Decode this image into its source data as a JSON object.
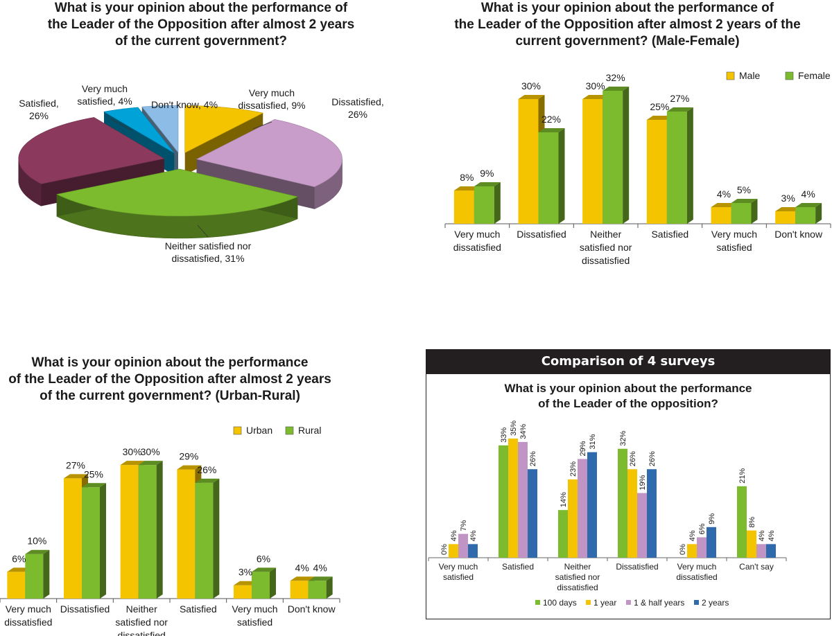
{
  "colors": {
    "male": "#f5c400",
    "female": "#7cbb2e",
    "s100": "#7cbb2e",
    "s1y": "#f5c400",
    "s15y": "#c094c4",
    "s2y": "#2f6aad",
    "pie_vmd": "#f5c400",
    "pie_dis": "#c99dc9",
    "pie_nei": "#7cbb2e",
    "pie_sat": "#8b3a5e",
    "pie_vms": "#00a2d8",
    "pie_dk": "#8dbde6"
  },
  "panels": {
    "pie": {
      "title": "What is your opinion about the performance of\nthe Leader of the Opposition after almost 2 years\nof the current government?"
    },
    "gender": {
      "title": "What is your opinion about the performance of\nthe Leader of the Opposition after almost 2 years of the\ncurrent government? (Male-Female)"
    },
    "area": {
      "title": "What is your opinion about the performance\nof the Leader of the Opposition after almost 2 years\nof the current government? (Urban-Rural)"
    },
    "surveys": {
      "header": "Comparison of 4 surveys",
      "title": "What is your opinion about the performance\nof the Leader of the opposition?"
    }
  },
  "chart_data": [
    {
      "type": "pie",
      "title": "What is your opinion about the performance of the Leader of the Opposition after almost 2 years of the current government?",
      "slices": [
        {
          "label": "Very much dissatisfied, 9%",
          "value": 9,
          "color": "#f5c400"
        },
        {
          "label": "Dissatisfied, 26%",
          "value": 26,
          "color": "#c99dc9"
        },
        {
          "label": "Neither satisfied nor dissatisfied, 31%",
          "value": 31,
          "color": "#7cbb2e"
        },
        {
          "label": "Satisfied, 26%",
          "value": 26,
          "color": "#8b3a5e"
        },
        {
          "label": "Very much satisfied, 4%",
          "value": 4,
          "color": "#00a2d8"
        },
        {
          "label": "Don't know, 4%",
          "value": 4,
          "color": "#8dbde6"
        }
      ]
    },
    {
      "type": "bar",
      "title": "What is your opinion about the performance of the Leader of the Opposition after almost 2 years of the current government? (Male-Female)",
      "categories": [
        "Very much dissatisfied",
        "Dissatisfied",
        "Neither satisfied nor dissatisfied",
        "Satisfied",
        "Very much satisfied",
        "Don't know"
      ],
      "series": [
        {
          "name": "Male",
          "values": [
            8,
            30,
            30,
            25,
            4,
            3
          ],
          "color": "#f5c400"
        },
        {
          "name": "Female",
          "values": [
            9,
            22,
            32,
            27,
            5,
            4
          ],
          "color": "#7cbb2e"
        }
      ],
      "legend": "top-right",
      "grid": false,
      "ylim": [
        0,
        35
      ]
    },
    {
      "type": "bar",
      "title": "What is your opinion about the performance of the Leader of the Opposition after almost 2 years of the current government? (Urban-Rural)",
      "categories": [
        "Very much dissatisfied",
        "Dissatisfied",
        "Neither satisfied nor dissatisfied",
        "Satisfied",
        "Very much satisfied",
        "Don't know"
      ],
      "series": [
        {
          "name": "Urban",
          "values": [
            6,
            27,
            30,
            29,
            3,
            4
          ],
          "color": "#f5c400"
        },
        {
          "name": "Rural",
          "values": [
            10,
            25,
            30,
            26,
            6,
            4
          ],
          "color": "#7cbb2e"
        }
      ],
      "legend": "top-right",
      "grid": false,
      "ylim": [
        0,
        35
      ]
    },
    {
      "type": "bar",
      "title": "What is your opinion about the performance of the Leader of the opposition?",
      "categories": [
        "Very much satisfied",
        "Satisfied",
        "Neither satisfied nor dissatisfied",
        "Dissatisfied",
        "Very much dissatisfied",
        "Can't say"
      ],
      "series": [
        {
          "name": "100 days",
          "values": [
            0,
            33,
            14,
            32,
            0,
            21
          ],
          "color": "#7cbb2e"
        },
        {
          "name": "1 year",
          "values": [
            4,
            35,
            23,
            26,
            4,
            8
          ],
          "color": "#f5c400"
        },
        {
          "name": "1 & half years",
          "values": [
            7,
            34,
            29,
            19,
            6,
            4
          ],
          "color": "#c094c4"
        },
        {
          "name": "2 years",
          "values": [
            4,
            26,
            31,
            26,
            9,
            4
          ],
          "color": "#2f6aad"
        }
      ],
      "legend": "bottom",
      "grid": false,
      "ylim": [
        0,
        38
      ]
    }
  ]
}
